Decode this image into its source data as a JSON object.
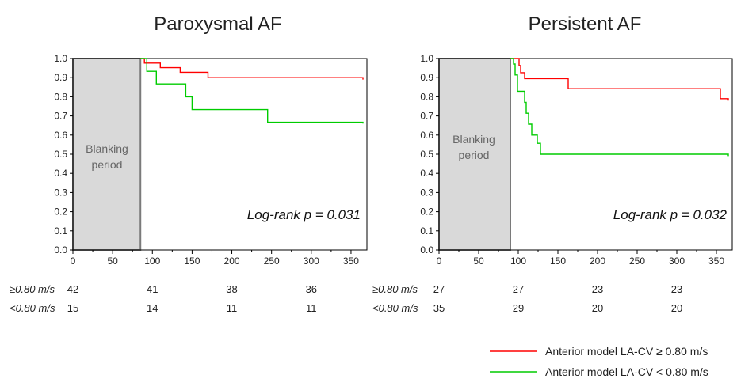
{
  "chart_data": [
    {
      "type": "line",
      "title": "Paroxysmal AF",
      "xlabel": "",
      "ylabel": "",
      "xlim": [
        0,
        370
      ],
      "ylim": [
        0.0,
        1.0
      ],
      "x_ticks": [
        "0",
        "50",
        "100",
        "150",
        "200",
        "250",
        "300",
        "350"
      ],
      "y_ticks": [
        "0.0",
        "0.1",
        "0.2",
        "0.3",
        "0.4",
        "0.5",
        "0.6",
        "0.7",
        "0.8",
        "0.9",
        "1.0"
      ],
      "blanking": {
        "label_line1": "Blanking",
        "label_line2": "period",
        "x_start": 0,
        "x_end": 85
      },
      "annotation": "Log-rank p = 0.031",
      "series": [
        {
          "name": "Anterior model LA-CV ≥ 0.80 m/s",
          "color": "#ff0000",
          "points": [
            [
              85,
              1.0
            ],
            [
              90,
              1.0
            ],
            [
              90,
              0.976
            ],
            [
              110,
              0.976
            ],
            [
              110,
              0.952
            ],
            [
              135,
              0.952
            ],
            [
              135,
              0.928
            ],
            [
              170,
              0.928
            ],
            [
              170,
              0.9
            ],
            [
              365,
              0.9
            ],
            [
              365,
              0.89
            ]
          ]
        },
        {
          "name": "Anterior model LA-CV < 0.80 m/s",
          "color": "#00cc00",
          "points": [
            [
              85,
              1.0
            ],
            [
              93,
              1.0
            ],
            [
              93,
              0.933
            ],
            [
              105,
              0.933
            ],
            [
              105,
              0.867
            ],
            [
              142,
              0.867
            ],
            [
              142,
              0.8
            ],
            [
              150,
              0.8
            ],
            [
              150,
              0.733
            ],
            [
              245,
              0.733
            ],
            [
              245,
              0.667
            ],
            [
              365,
              0.667
            ],
            [
              365,
              0.66
            ]
          ]
        }
      ],
      "risk_table": [
        {
          "label": "≥0.80 m/s",
          "values": [
            "42",
            "41",
            "38",
            "36"
          ],
          "at_x": [
            0,
            100,
            200,
            300
          ]
        },
        {
          "label": "<0.80 m/s",
          "values": [
            "15",
            "14",
            "11",
            "11"
          ],
          "at_x": [
            0,
            100,
            200,
            300
          ]
        }
      ]
    },
    {
      "type": "line",
      "title": "Persistent AF",
      "xlabel": "",
      "ylabel": "",
      "xlim": [
        0,
        370
      ],
      "ylim": [
        0.0,
        1.0
      ],
      "x_ticks": [
        "0",
        "50",
        "100",
        "150",
        "200",
        "250",
        "300",
        "350"
      ],
      "y_ticks": [
        "0.0",
        "0.1",
        "0.2",
        "0.3",
        "0.4",
        "0.5",
        "0.6",
        "0.7",
        "0.8",
        "0.9",
        "1.0"
      ],
      "blanking": {
        "label_line1": "Blanking",
        "label_line2": "period",
        "x_start": 0,
        "x_end": 90
      },
      "annotation": "Log-rank p = 0.032",
      "series": [
        {
          "name": "Anterior model LA-CV ≥ 0.80 m/s",
          "color": "#ff0000",
          "points": [
            [
              90,
              1.0
            ],
            [
              101,
              1.0
            ],
            [
              101,
              0.963
            ],
            [
              103,
              0.963
            ],
            [
              103,
              0.926
            ],
            [
              108,
              0.926
            ],
            [
              108,
              0.895
            ],
            [
              163,
              0.895
            ],
            [
              163,
              0.842
            ],
            [
              355,
              0.842
            ],
            [
              355,
              0.79
            ],
            [
              365,
              0.79
            ],
            [
              365,
              0.78
            ]
          ]
        },
        {
          "name": "Anterior model LA-CV < 0.80 m/s",
          "color": "#00cc00",
          "points": [
            [
              90,
              1.0
            ],
            [
              94,
              1.0
            ],
            [
              94,
              0.971
            ],
            [
              96,
              0.971
            ],
            [
              96,
              0.914
            ],
            [
              99,
              0.914
            ],
            [
              99,
              0.829
            ],
            [
              108,
              0.829
            ],
            [
              108,
              0.771
            ],
            [
              110,
              0.771
            ],
            [
              110,
              0.714
            ],
            [
              113,
              0.714
            ],
            [
              113,
              0.657
            ],
            [
              117,
              0.657
            ],
            [
              117,
              0.6
            ],
            [
              124,
              0.6
            ],
            [
              124,
              0.557
            ],
            [
              128,
              0.557
            ],
            [
              128,
              0.5
            ],
            [
              365,
              0.5
            ],
            [
              365,
              0.49
            ]
          ]
        }
      ],
      "risk_table": [
        {
          "label": "≥0.80 m/s",
          "values": [
            "27",
            "27",
            "23",
            "23"
          ],
          "at_x": [
            0,
            100,
            200,
            300
          ]
        },
        {
          "label": "<0.80 m/s",
          "values": [
            "35",
            "29",
            "20",
            "20"
          ],
          "at_x": [
            0,
            100,
            200,
            300
          ]
        }
      ]
    }
  ],
  "legend": {
    "position": "bottom-right",
    "items": [
      {
        "label": "Anterior model LA-CV ≥ 0.80 m/s",
        "color": "#ff0000"
      },
      {
        "label": "Anterior model LA-CV < 0.80 m/s",
        "color": "#00cc00"
      }
    ]
  }
}
